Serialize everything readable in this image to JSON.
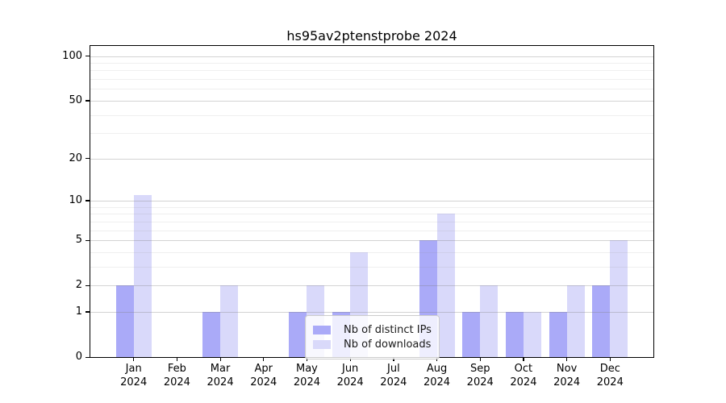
{
  "chart_data": {
    "type": "bar",
    "title": "hs95av2ptenstprobe 2024",
    "categories": [
      "Jan 2024",
      "Feb 2024",
      "Mar 2024",
      "Apr 2024",
      "May 2024",
      "Jun 2024",
      "Jul 2024",
      "Aug 2024",
      "Sep 2024",
      "Oct 2024",
      "Nov 2024",
      "Dec 2024"
    ],
    "x_tick_labels": [
      "Jan\n2024",
      "Feb\n2024",
      "Mar\n2024",
      "Apr\n2024",
      "May\n2024",
      "Jun\n2024",
      "Jul\n2024",
      "Aug\n2024",
      "Sep\n2024",
      "Oct\n2024",
      "Nov\n2024",
      "Dec\n2024"
    ],
    "series": [
      {
        "name": "Nb of distinct IPs",
        "color": "#aaaaf8",
        "values": [
          2,
          0,
          1,
          0,
          1,
          1,
          0,
          5,
          1,
          1,
          1,
          2
        ]
      },
      {
        "name": "Nb of downloads",
        "color": "#d9d9fa",
        "values": [
          11,
          0,
          2,
          0,
          2,
          4,
          0,
          8,
          2,
          1,
          2,
          5
        ]
      }
    ],
    "xlabel": "",
    "ylabel": "",
    "yscale": "log1p",
    "ylim": [
      0,
      117
    ],
    "y_major_ticks": [
      0,
      1,
      2,
      5,
      10,
      20,
      50,
      100
    ],
    "y_minor_ticks": [
      3,
      4,
      6,
      7,
      8,
      9,
      30,
      40,
      60,
      70,
      80,
      90
    ],
    "grid": "horizontal",
    "legend_position": "inside-bottom-center",
    "colors": {
      "major_grid": "rgba(128,128,128,0.35)",
      "minor_grid": "rgba(128,128,128,0.13)",
      "axis": "#000000",
      "text": "#000000"
    }
  }
}
